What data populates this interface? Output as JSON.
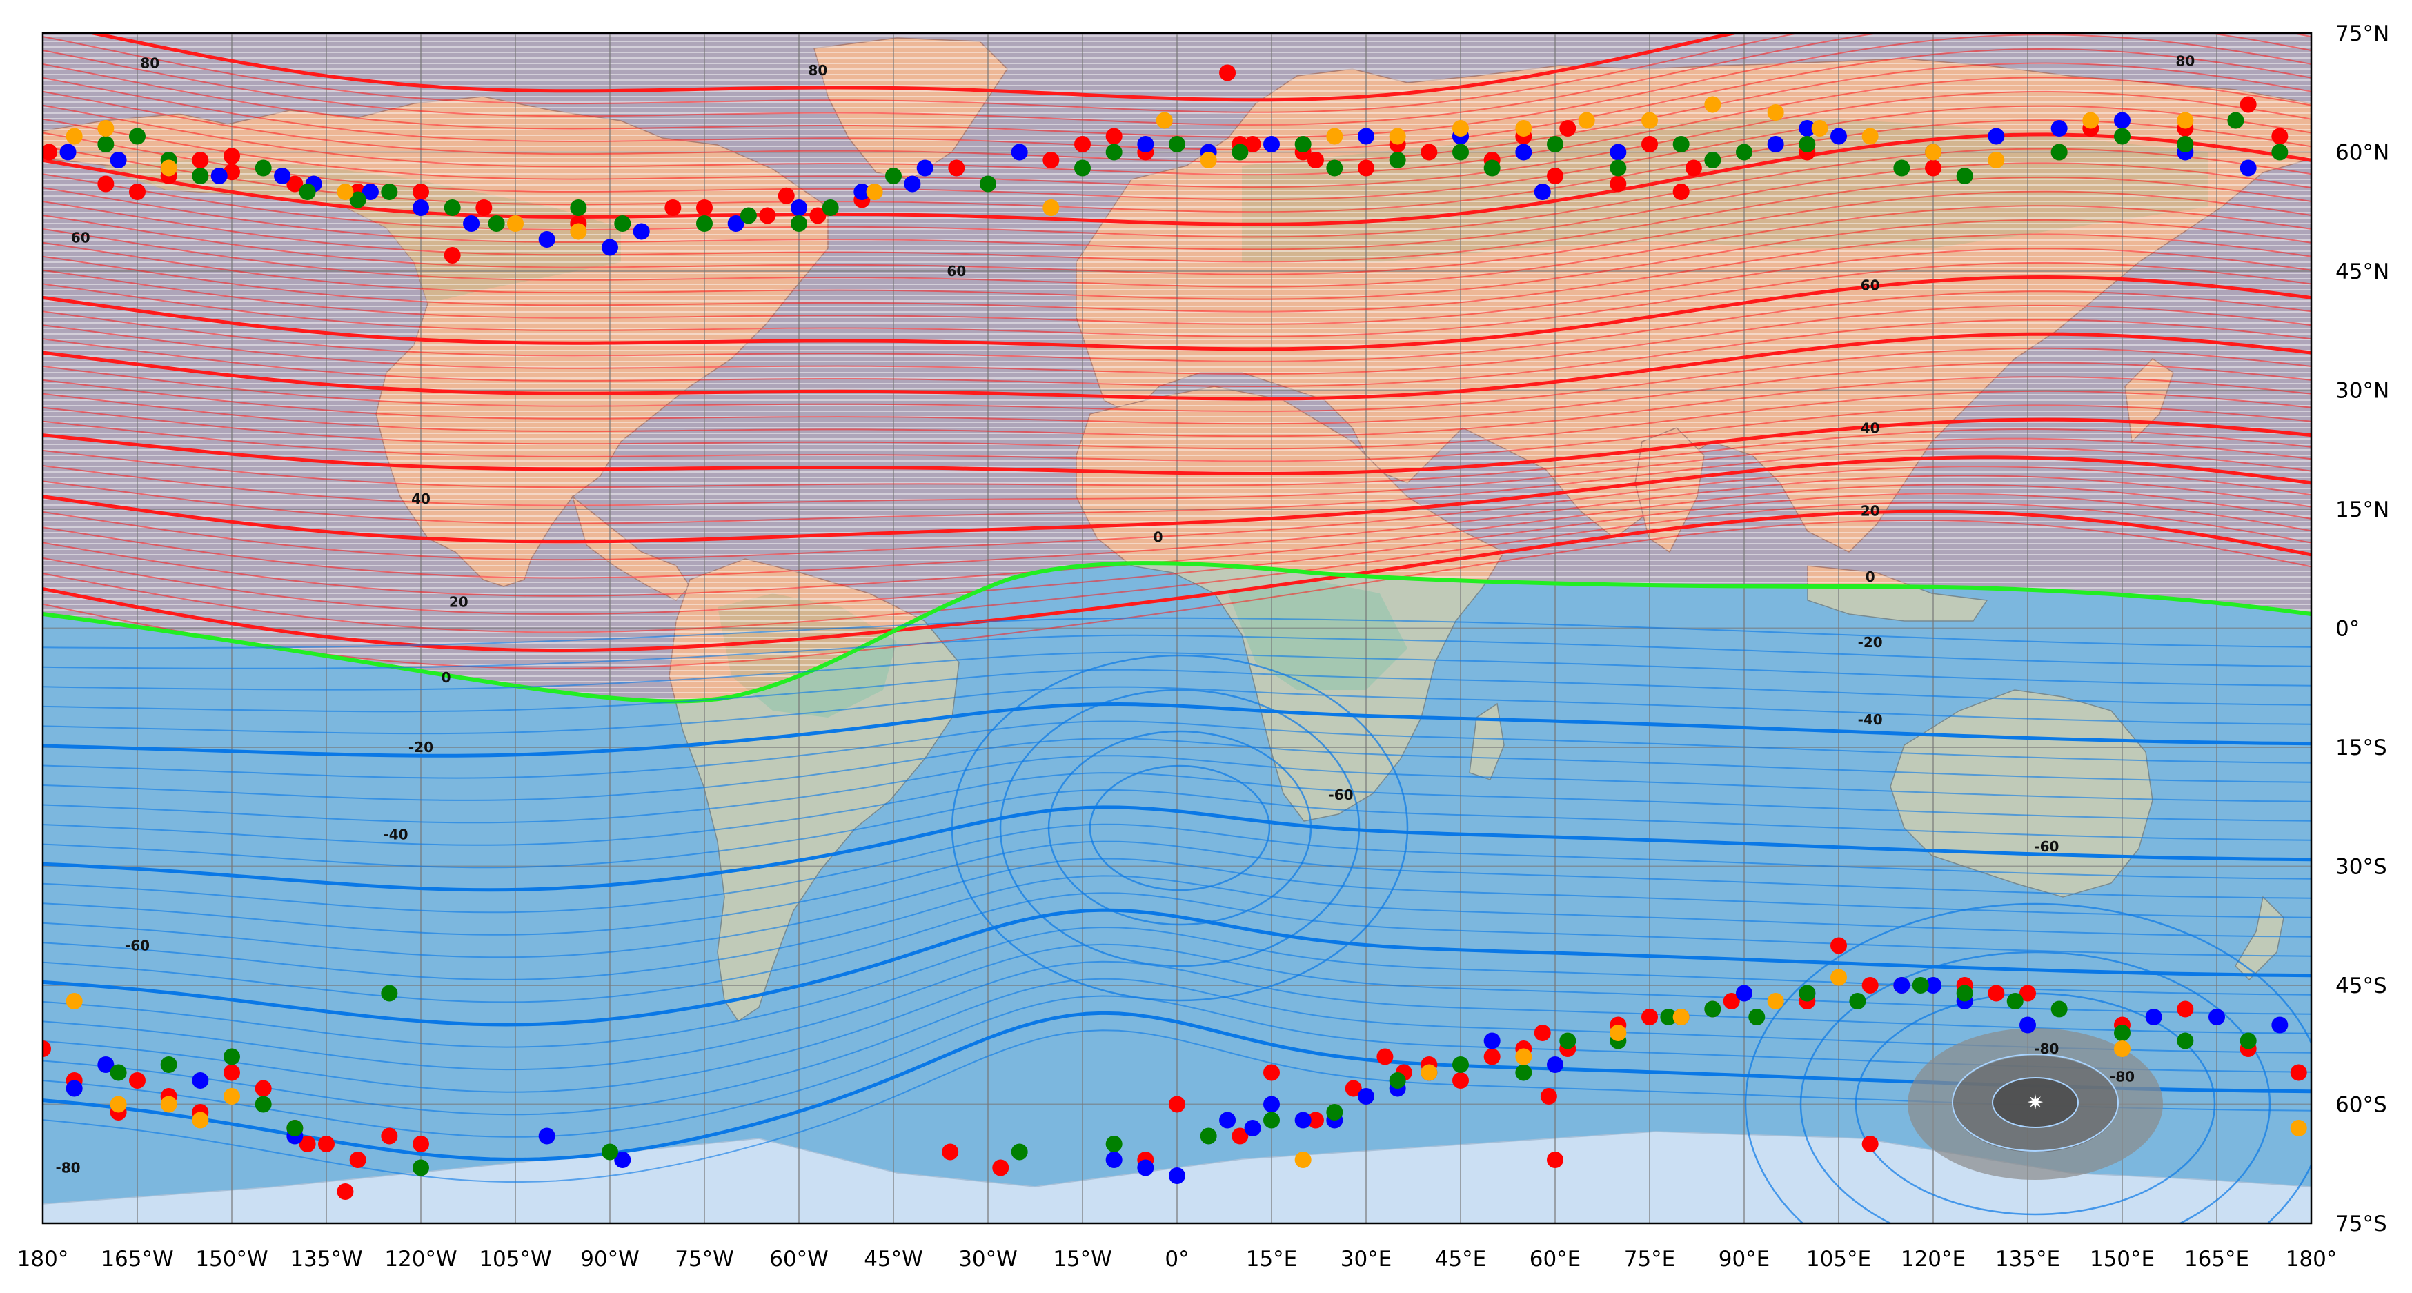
{
  "map": {
    "projection": "equirectangular",
    "extent": {
      "lon": [
        -180,
        180
      ],
      "lat": [
        -75,
        75
      ]
    },
    "lon_ticks": [
      {
        "value": -180,
        "label": "180°"
      },
      {
        "value": -165,
        "label": "165°W"
      },
      {
        "value": -150,
        "label": "150°W"
      },
      {
        "value": -135,
        "label": "135°W"
      },
      {
        "value": -120,
        "label": "120°W"
      },
      {
        "value": -105,
        "label": "105°W"
      },
      {
        "value": -90,
        "label": "90°W"
      },
      {
        "value": -75,
        "label": "75°W"
      },
      {
        "value": -60,
        "label": "60°W"
      },
      {
        "value": -45,
        "label": "45°W"
      },
      {
        "value": -30,
        "label": "30°W"
      },
      {
        "value": -15,
        "label": "15°W"
      },
      {
        "value": 0,
        "label": "0°"
      },
      {
        "value": 15,
        "label": "15°E"
      },
      {
        "value": 30,
        "label": "30°E"
      },
      {
        "value": 45,
        "label": "45°E"
      },
      {
        "value": 60,
        "label": "60°E"
      },
      {
        "value": 75,
        "label": "75°E"
      },
      {
        "value": 90,
        "label": "90°E"
      },
      {
        "value": 105,
        "label": "105°E"
      },
      {
        "value": 120,
        "label": "120°E"
      },
      {
        "value": 135,
        "label": "135°E"
      },
      {
        "value": 150,
        "label": "150°E"
      },
      {
        "value": 165,
        "label": "165°E"
      },
      {
        "value": 180,
        "label": "180°"
      }
    ],
    "lat_ticks": [
      {
        "value": 75,
        "label": "75°N"
      },
      {
        "value": 60,
        "label": "60°N"
      },
      {
        "value": 45,
        "label": "45°N"
      },
      {
        "value": 30,
        "label": "30°N"
      },
      {
        "value": 15,
        "label": "15°N"
      },
      {
        "value": 0,
        "label": "0°"
      },
      {
        "value": -15,
        "label": "15°S"
      },
      {
        "value": -30,
        "label": "30°S"
      },
      {
        "value": -45,
        "label": "45°S"
      },
      {
        "value": -60,
        "label": "60°S"
      },
      {
        "value": -75,
        "label": "75°S"
      }
    ],
    "colors": {
      "ocean": "#8fc3de",
      "land": "#e6dcae",
      "land_green": "#b9d7a2",
      "ice": "#f4f7f9",
      "positive_shade": "#ff6a6a",
      "negative_shade": "#5aa0e6",
      "positive_line": "#ff1a1a",
      "negative_line": "#0a78e6",
      "zero_line": "#22ee22",
      "pole_shade": "#8a8a8a"
    },
    "contour_labels": [
      {
        "text": "80",
        "lon": -163,
        "lat": 71.2
      },
      {
        "text": "80",
        "lon": -57,
        "lat": 70.3
      },
      {
        "text": "80",
        "lon": 160,
        "lat": 71.5
      },
      {
        "text": "60",
        "lon": -174,
        "lat": 49.2
      },
      {
        "text": "60",
        "lon": -35,
        "lat": 45
      },
      {
        "text": "60",
        "lon": 110,
        "lat": 43.2
      },
      {
        "text": "40",
        "lon": -120,
        "lat": 16.3
      },
      {
        "text": "40",
        "lon": 110,
        "lat": 25.2
      },
      {
        "text": "20",
        "lon": -114,
        "lat": 3.3
      },
      {
        "text": "20",
        "lon": 110,
        "lat": 14.8
      },
      {
        "text": "0",
        "lon": -116,
        "lat": -6.2
      },
      {
        "text": "0",
        "lon": -3,
        "lat": 11.5
      },
      {
        "text": "0",
        "lon": 110,
        "lat": 6.5
      },
      {
        "text": "-20",
        "lon": -120,
        "lat": -15
      },
      {
        "text": "-20",
        "lon": 110,
        "lat": -1.8
      },
      {
        "text": "-40",
        "lon": -124,
        "lat": -26
      },
      {
        "text": "-40",
        "lon": 110,
        "lat": -11.5
      },
      {
        "text": "-60",
        "lon": -165,
        "lat": -40
      },
      {
        "text": "-60",
        "lon": 26,
        "lat": -21
      },
      {
        "text": "-60",
        "lon": 138,
        "lat": -27.5
      },
      {
        "text": "-80",
        "lon": 138,
        "lat": -53
      },
      {
        "text": "-80",
        "lon": 150,
        "lat": -56.5
      },
      {
        "text": "-80",
        "lon": -176,
        "lat": -68
      }
    ],
    "dots": {
      "red": [
        [
          -179,
          60
        ],
        [
          -160,
          57
        ],
        [
          -155,
          59
        ],
        [
          -150,
          59.5
        ],
        [
          -140,
          56
        ],
        [
          -130,
          55
        ],
        [
          -120,
          55
        ],
        [
          -110,
          53
        ],
        [
          -95,
          51
        ],
        [
          -80,
          53
        ],
        [
          -62,
          54.5
        ],
        [
          -57,
          52
        ],
        [
          -50,
          54
        ],
        [
          -35,
          58
        ],
        [
          -20,
          59
        ],
        [
          -15,
          61
        ],
        [
          -10,
          62
        ],
        [
          -5,
          60
        ],
        [
          10,
          61
        ],
        [
          20,
          60
        ],
        [
          30,
          58
        ],
        [
          40,
          60
        ],
        [
          50,
          59
        ],
        [
          60,
          57
        ],
        [
          70,
          56
        ],
        [
          80,
          55
        ],
        [
          -170,
          56
        ],
        [
          -165,
          55
        ],
        [
          -150,
          57.5
        ],
        [
          -115,
          47
        ],
        [
          -75,
          53
        ],
        [
          -65,
          52
        ],
        [
          8,
          70
        ],
        [
          12,
          61
        ],
        [
          22,
          59
        ],
        [
          35,
          61
        ],
        [
          45,
          62
        ],
        [
          55,
          62
        ],
        [
          62,
          63
        ],
        [
          75,
          61
        ],
        [
          82,
          58
        ],
        [
          100,
          60
        ],
        [
          120,
          58
        ],
        [
          140,
          60
        ],
        [
          145,
          63
        ],
        [
          160,
          63
        ],
        [
          170,
          66
        ],
        [
          175,
          62
        ],
        [
          -180,
          -53
        ],
        [
          -175,
          -57
        ],
        [
          -165,
          -57
        ],
        [
          -160,
          -59
        ],
        [
          -155,
          -61
        ],
        [
          -145,
          -58
        ],
        [
          -140,
          -63
        ],
        [
          -135,
          -65
        ],
        [
          -130,
          -67
        ],
        [
          -125,
          -64
        ],
        [
          -120,
          -65
        ],
        [
          -168,
          -61
        ],
        [
          -150,
          -56
        ],
        [
          -138,
          -65
        ],
        [
          -132,
          -71
        ],
        [
          -36,
          -66
        ],
        [
          -28,
          -68
        ],
        [
          -5,
          -67
        ],
        [
          0,
          -60
        ],
        [
          10,
          -64
        ],
        [
          15,
          -56
        ],
        [
          22,
          -62
        ],
        [
          28,
          -58
        ],
        [
          33,
          -54
        ],
        [
          36,
          -56
        ],
        [
          40,
          -55
        ],
        [
          45,
          -57
        ],
        [
          50,
          -54
        ],
        [
          55,
          -53
        ],
        [
          58,
          -51
        ],
        [
          62,
          -53
        ],
        [
          70,
          -50
        ],
        [
          75,
          -49
        ],
        [
          85,
          -48
        ],
        [
          88,
          -47
        ],
        [
          100,
          -47
        ],
        [
          110,
          -45
        ],
        [
          115,
          -45
        ],
        [
          125,
          -45
        ],
        [
          130,
          -46
        ],
        [
          135,
          -46
        ],
        [
          105,
          -40
        ],
        [
          59,
          -59
        ],
        [
          60,
          -67
        ],
        [
          110,
          -65
        ],
        [
          150,
          -50
        ],
        [
          160,
          -48
        ],
        [
          170,
          -53
        ],
        [
          178,
          -56
        ]
      ],
      "blue": [
        [
          -176,
          60
        ],
        [
          -168,
          59
        ],
        [
          -160,
          58
        ],
        [
          -152,
          57
        ],
        [
          -142,
          57
        ],
        [
          -137,
          56
        ],
        [
          -128,
          55
        ],
        [
          -120,
          53
        ],
        [
          -112,
          51
        ],
        [
          -100,
          49
        ],
        [
          -90,
          48
        ],
        [
          -85,
          50
        ],
        [
          -70,
          51
        ],
        [
          -60,
          53
        ],
        [
          -50,
          55
        ],
        [
          -42,
          56
        ],
        [
          -40,
          58
        ],
        [
          -25,
          60
        ],
        [
          -5,
          61
        ],
        [
          5,
          60
        ],
        [
          15,
          61
        ],
        [
          30,
          62
        ],
        [
          45,
          62
        ],
        [
          55,
          60
        ],
        [
          58,
          55
        ],
        [
          70,
          60
        ],
        [
          95,
          61
        ],
        [
          100,
          63
        ],
        [
          105,
          62
        ],
        [
          120,
          60
        ],
        [
          130,
          62
        ],
        [
          140,
          63
        ],
        [
          150,
          64
        ],
        [
          160,
          60
        ],
        [
          170,
          58
        ],
        [
          -175,
          -58
        ],
        [
          -170,
          -55
        ],
        [
          -155,
          -57
        ],
        [
          -140,
          -64
        ],
        [
          -100,
          -64
        ],
        [
          -88,
          -67
        ],
        [
          -10,
          -67
        ],
        [
          -5,
          -68
        ],
        [
          0,
          -69
        ],
        [
          8,
          -62
        ],
        [
          12,
          -63
        ],
        [
          15,
          -60
        ],
        [
          20,
          -62
        ],
        [
          25,
          -62
        ],
        [
          30,
          -59
        ],
        [
          35,
          -58
        ],
        [
          40,
          -56
        ],
        [
          50,
          -52
        ],
        [
          60,
          -55
        ],
        [
          80,
          -49
        ],
        [
          90,
          -46
        ],
        [
          100,
          -46
        ],
        [
          115,
          -45
        ],
        [
          120,
          -45
        ],
        [
          125,
          -47
        ],
        [
          135,
          -50
        ],
        [
          155,
          -49
        ],
        [
          165,
          -49
        ],
        [
          175,
          -50
        ]
      ],
      "green": [
        [
          -170,
          61
        ],
        [
          -165,
          62
        ],
        [
          -160,
          59
        ],
        [
          -155,
          57
        ],
        [
          -145,
          58
        ],
        [
          -138,
          55
        ],
        [
          -130,
          54
        ],
        [
          -125,
          55
        ],
        [
          -115,
          53
        ],
        [
          -108,
          51
        ],
        [
          -95,
          53
        ],
        [
          -88,
          51
        ],
        [
          -75,
          51
        ],
        [
          -68,
          52
        ],
        [
          -60,
          51
        ],
        [
          -55,
          53
        ],
        [
          -45,
          57
        ],
        [
          -30,
          56
        ],
        [
          -15,
          58
        ],
        [
          -10,
          60
        ],
        [
          0,
          61
        ],
        [
          10,
          60
        ],
        [
          20,
          61
        ],
        [
          25,
          58
        ],
        [
          35,
          59
        ],
        [
          45,
          60
        ],
        [
          50,
          58
        ],
        [
          60,
          61
        ],
        [
          70,
          58
        ],
        [
          80,
          61
        ],
        [
          85,
          59
        ],
        [
          90,
          60
        ],
        [
          100,
          61
        ],
        [
          115,
          58
        ],
        [
          125,
          57
        ],
        [
          140,
          60
        ],
        [
          150,
          62
        ],
        [
          160,
          61
        ],
        [
          168,
          64
        ],
        [
          175,
          60
        ],
        [
          -160,
          -55
        ],
        [
          -150,
          -54
        ],
        [
          -140,
          -63
        ],
        [
          -125,
          -46
        ],
        [
          -120,
          -68
        ],
        [
          -90,
          -66
        ],
        [
          -25,
          -66
        ],
        [
          -10,
          -65
        ],
        [
          5,
          -64
        ],
        [
          15,
          -62
        ],
        [
          25,
          -61
        ],
        [
          35,
          -57
        ],
        [
          45,
          -55
        ],
        [
          55,
          -56
        ],
        [
          62,
          -52
        ],
        [
          70,
          -52
        ],
        [
          78,
          -49
        ],
        [
          85,
          -48
        ],
        [
          92,
          -49
        ],
        [
          100,
          -46
        ],
        [
          108,
          -47
        ],
        [
          118,
          -45
        ],
        [
          125,
          -46
        ],
        [
          133,
          -47
        ],
        [
          140,
          -48
        ],
        [
          150,
          -51
        ],
        [
          160,
          -52
        ],
        [
          170,
          -52
        ],
        [
          -168,
          -56
        ],
        [
          -145,
          -60
        ]
      ],
      "orange": [
        [
          -175,
          62
        ],
        [
          -170,
          63
        ],
        [
          -160,
          58
        ],
        [
          -132,
          55
        ],
        [
          -105,
          51
        ],
        [
          -95,
          50
        ],
        [
          -48,
          55
        ],
        [
          -20,
          53
        ],
        [
          -2,
          64
        ],
        [
          5,
          59
        ],
        [
          25,
          62
        ],
        [
          35,
          62
        ],
        [
          45,
          63
        ],
        [
          55,
          63
        ],
        [
          65,
          64
        ],
        [
          75,
          64
        ],
        [
          85,
          66
        ],
        [
          95,
          65
        ],
        [
          102,
          63
        ],
        [
          110,
          62
        ],
        [
          120,
          60
        ],
        [
          130,
          59
        ],
        [
          145,
          64
        ],
        [
          160,
          64
        ],
        [
          -175,
          -47
        ],
        [
          -168,
          -60
        ],
        [
          -160,
          -60
        ],
        [
          -150,
          -59
        ],
        [
          -155,
          -62
        ],
        [
          20,
          -67
        ],
        [
          40,
          -56
        ],
        [
          55,
          -54
        ],
        [
          70,
          -51
        ],
        [
          80,
          -49
        ],
        [
          95,
          -47
        ],
        [
          105,
          -44
        ],
        [
          150,
          -53
        ],
        [
          178,
          -63
        ]
      ]
    }
  }
}
